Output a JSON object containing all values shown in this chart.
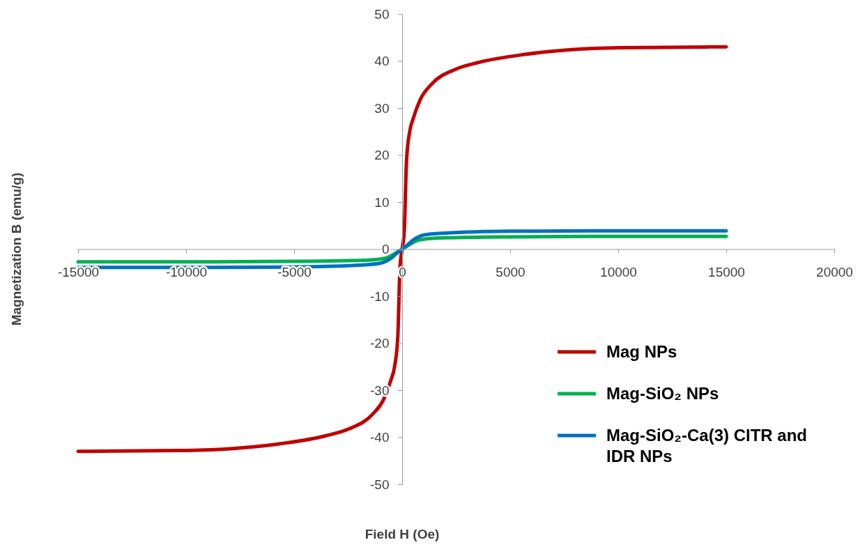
{
  "chart_data": {
    "type": "line",
    "xlabel": "Field H (Oe)",
    "ylabel": "Magnetization B (emu/g)",
    "xlim": [
      -15000,
      20000
    ],
    "xticks": [
      -15000,
      -10000,
      -5000,
      0,
      5000,
      10000,
      15000,
      20000
    ],
    "ylim": [
      -50,
      50
    ],
    "yticks": [
      -50,
      -40,
      -30,
      -20,
      -10,
      0,
      10,
      20,
      30,
      40,
      50
    ],
    "grid": false,
    "legend": "bottom right",
    "marker": "none",
    "line_style": "solid",
    "series": [
      {
        "name": "Mag NPs",
        "color": "#c00000",
        "x": [
          -15000,
          -10000,
          -7840,
          -5680,
          -3550,
          -2450,
          -1390,
          -840,
          -516,
          -350,
          -200,
          -100,
          0,
          100,
          200,
          350,
          516,
          840,
          1390,
          2450,
          3550,
          5680,
          7840,
          10000,
          15000
        ],
        "values": [
          -43,
          -42.8,
          -42.4,
          -41.4,
          -39.7,
          -38.2,
          -35.2,
          -31.8,
          -27.8,
          -25,
          -18.5,
          -4,
          0,
          4,
          18.5,
          25,
          27.8,
          31.8,
          35.2,
          38.2,
          39.7,
          41.4,
          42.4,
          42.8,
          43
        ]
      },
      {
        "name": "Mag-SiO₂ NPs",
        "color": "#00b050",
        "x": [
          -15000,
          -10000,
          -5000,
          -2000,
          -1000,
          -750,
          -500,
          -250,
          0,
          250,
          500,
          750,
          1000,
          2000,
          5000,
          10000,
          15000
        ],
        "values": [
          -2.7,
          -2.7,
          -2.6,
          -2.4,
          -2.1,
          -1.9,
          -1.4,
          -0.7,
          0,
          0.7,
          1.4,
          1.9,
          2.1,
          2.4,
          2.6,
          2.7,
          2.7
        ]
      },
      {
        "name": "Mag-SiO₂-Ca(3) CITR and IDR NPs",
        "color": "#0070c0",
        "x": [
          -15000,
          -10000,
          -5000,
          -2000,
          -1000,
          -750,
          -500,
          -250,
          0,
          250,
          500,
          750,
          1000,
          2000,
          5000,
          10000,
          15000
        ],
        "values": [
          -3.9,
          -3.9,
          -3.8,
          -3.4,
          -3.0,
          -2.6,
          -1.9,
          -0.9,
          0,
          0.9,
          1.9,
          2.6,
          3.0,
          3.4,
          3.8,
          3.9,
          3.9
        ]
      }
    ]
  }
}
